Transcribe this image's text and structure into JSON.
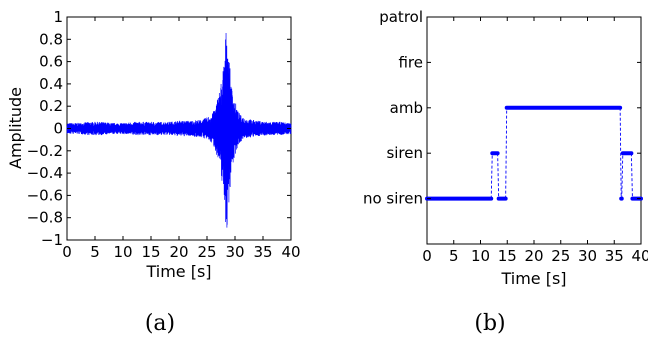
{
  "chart_data": [
    {
      "id": "a",
      "caption": "(a)",
      "type": "line",
      "title": "",
      "xlabel": "Time [s]",
      "ylabel": "Amplitude",
      "xlim": [
        0,
        40
      ],
      "ylim": [
        -1,
        1
      ],
      "xticks": [
        0,
        5,
        10,
        15,
        20,
        25,
        30,
        35,
        40
      ],
      "yticks": [
        -1,
        -0.8,
        -0.6,
        -0.4,
        -0.2,
        0,
        0.2,
        0.4,
        0.6,
        0.8,
        1
      ],
      "ytick_labels": [
        "−1",
        "−0.8",
        "−0.6",
        "−0.4",
        "−0.2",
        "0",
        "0.2",
        "0.4",
        "0.6",
        "0.8",
        "1"
      ],
      "grid": false,
      "series": [
        {
          "color": "#0000ff",
          "x": [
            0,
            2,
            4,
            6,
            8,
            10,
            12,
            14,
            16,
            18,
            20,
            22,
            24,
            25,
            26,
            26.5,
            27,
            27.5,
            28,
            28.3,
            28.6,
            29,
            29.4,
            30,
            30.5,
            31,
            32,
            34,
            36,
            38,
            40
          ],
          "envelope": [
            0.05,
            0.05,
            0.06,
            0.06,
            0.05,
            0.05,
            0.06,
            0.06,
            0.06,
            0.06,
            0.07,
            0.07,
            0.08,
            0.1,
            0.14,
            0.2,
            0.3,
            0.42,
            0.6,
            0.85,
            0.95,
            0.6,
            0.38,
            0.25,
            0.16,
            0.12,
            0.09,
            0.07,
            0.06,
            0.06,
            0.05
          ]
        }
      ]
    },
    {
      "id": "b",
      "caption": "(b)",
      "type": "line",
      "title": "",
      "xlabel": "Time [s]",
      "ylabel": "",
      "xlim": [
        0,
        40
      ],
      "xticks": [
        0,
        5,
        10,
        15,
        20,
        25,
        30,
        35,
        40
      ],
      "categories": [
        "no siren",
        "siren",
        "amb",
        "fire",
        "patrol"
      ],
      "ylim": [
        -1,
        4
      ],
      "grid": false,
      "series": [
        {
          "color": "#0000ff",
          "segments": [
            {
              "x0": 0,
              "x1": 12,
              "level": 0
            },
            {
              "x0": 12.2,
              "x1": 13.2,
              "level": 1
            },
            {
              "x0": 13.4,
              "x1": 14.7,
              "level": 0
            },
            {
              "x0": 14.9,
              "x1": 36.1,
              "level": 2
            },
            {
              "x0": 36.3,
              "x1": 36.4,
              "level": 0
            },
            {
              "x0": 36.6,
              "x1": 38.2,
              "level": 1
            },
            {
              "x0": 38.4,
              "x1": 40,
              "level": 0
            }
          ]
        }
      ]
    }
  ]
}
